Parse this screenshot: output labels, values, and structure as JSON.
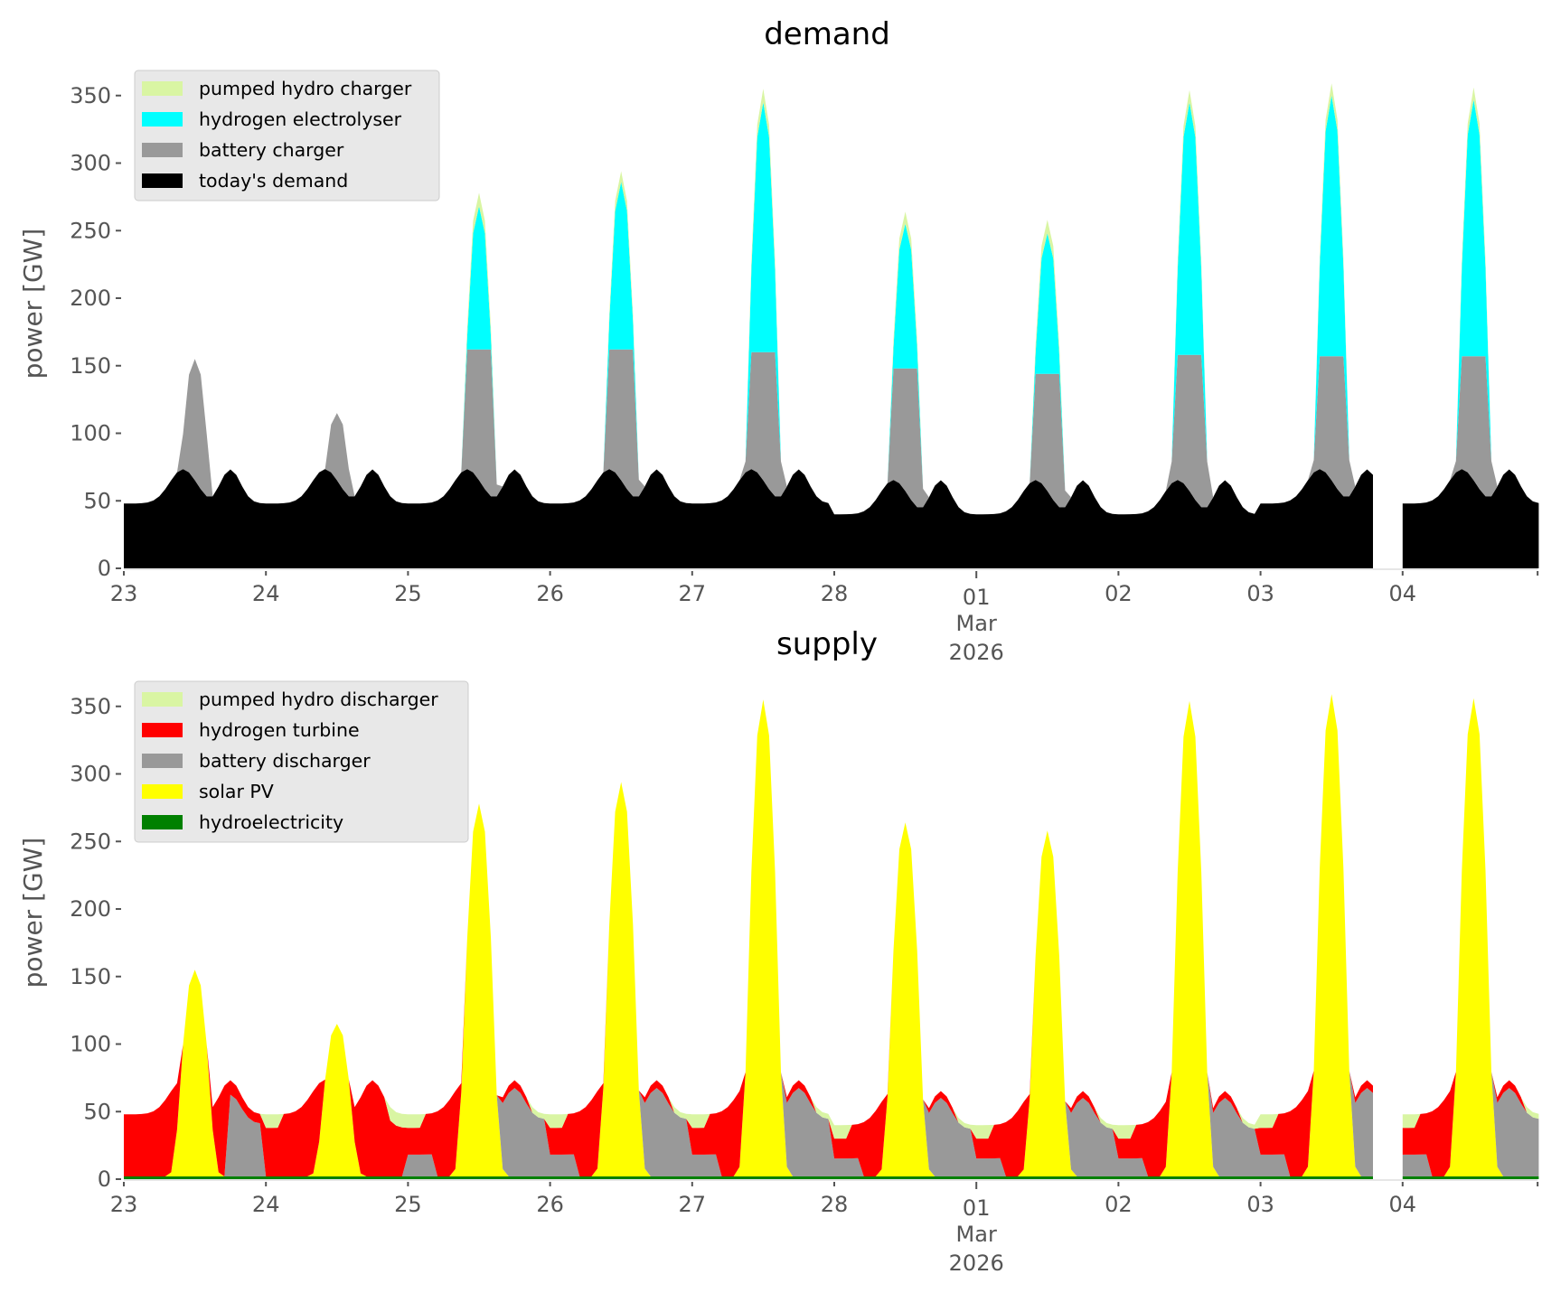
{
  "chart_data": [
    {
      "type": "area",
      "stacked": true,
      "title": "demand",
      "xlabel": "",
      "ylabel": "power [GW]",
      "ylim": [
        0,
        370
      ],
      "yticks": [
        0,
        50,
        100,
        150,
        200,
        250,
        300,
        350
      ],
      "xticks": [
        {
          "day": 0,
          "label": "23"
        },
        {
          "day": 1,
          "label": "24"
        },
        {
          "day": 2,
          "label": "25"
        },
        {
          "day": 3,
          "label": "26"
        },
        {
          "day": 4,
          "label": "27"
        },
        {
          "day": 5,
          "label": "28"
        },
        {
          "day": 6,
          "label": "01",
          "sublabel": "Mar",
          "sublabel2": "2026"
        },
        {
          "day": 7,
          "label": "02"
        },
        {
          "day": 8,
          "label": "03"
        },
        {
          "day": 9,
          "label": "04"
        }
      ],
      "xrange_days": [
        0,
        9.95
      ],
      "grid": false,
      "legend_position": "top-left",
      "data_gap_days": [
        8.82,
        8.96
      ],
      "series": [
        {
          "name": "pumped hydro charger",
          "color": "#d9f5a3"
        },
        {
          "name": "hydrogen electrolyser",
          "color": "#00ffff"
        },
        {
          "name": "battery charger",
          "color": "#999999"
        },
        {
          "name": "today's demand",
          "color": "#000000"
        }
      ],
      "daily_peaks": [
        {
          "day": "23",
          "total_peak": 155,
          "battery_peak": 155,
          "electrolyser_peak": 0
        },
        {
          "day": "24",
          "total_peak": 115,
          "battery_peak": 115,
          "electrolyser_peak": 0
        },
        {
          "day": "25",
          "total_peak": 278,
          "battery_peak": 162,
          "electrolyser_peak": 268
        },
        {
          "day": "26",
          "total_peak": 294,
          "battery_peak": 162,
          "electrolyser_peak": 286
        },
        {
          "day": "27",
          "total_peak": 355,
          "battery_peak": 160,
          "electrolyser_peak": 345
        },
        {
          "day": "28",
          "total_peak": 264,
          "battery_peak": 148,
          "electrolyser_peak": 255
        },
        {
          "day": "01",
          "total_peak": 258,
          "battery_peak": 144,
          "electrolyser_peak": 248
        },
        {
          "day": "02",
          "total_peak": 354,
          "battery_peak": 158,
          "electrolyser_peak": 345
        },
        {
          "day": "03",
          "total_peak": 359,
          "battery_peak": 157,
          "electrolyser_peak": 350
        },
        {
          "day": "04",
          "total_peak": 356,
          "battery_peak": 157,
          "electrolyser_peak": 347
        }
      ],
      "demand_profile": {
        "min_GW": 44,
        "max_GW": 74
      }
    },
    {
      "type": "area",
      "stacked": true,
      "title": "supply",
      "xlabel": "",
      "ylabel": "power [GW]",
      "ylim": [
        0,
        370
      ],
      "yticks": [
        0,
        50,
        100,
        150,
        200,
        250,
        300,
        350
      ],
      "xticks": [
        {
          "day": 0,
          "label": "23"
        },
        {
          "day": 1,
          "label": "24"
        },
        {
          "day": 2,
          "label": "25"
        },
        {
          "day": 3,
          "label": "26"
        },
        {
          "day": 4,
          "label": "27"
        },
        {
          "day": 5,
          "label": "28"
        },
        {
          "day": 6,
          "label": "01",
          "sublabel": "Mar",
          "sublabel2": "2026"
        },
        {
          "day": 7,
          "label": "02"
        },
        {
          "day": 8,
          "label": "03"
        },
        {
          "day": 9,
          "label": "04"
        }
      ],
      "xrange_days": [
        0,
        9.95
      ],
      "grid": false,
      "legend_position": "top-left",
      "data_gap_days": [
        8.82,
        8.96
      ],
      "series": [
        {
          "name": "pumped hydro discharger",
          "color": "#d9f5a3"
        },
        {
          "name": "hydrogen turbine",
          "color": "#ff0000"
        },
        {
          "name": "battery discharger",
          "color": "#999999"
        },
        {
          "name": "solar PV",
          "color": "#ffff00"
        },
        {
          "name": "hydroelectricity",
          "color": "#008000"
        }
      ],
      "daily_solar_peaks": [
        {
          "day": "23",
          "solar_peak": 155
        },
        {
          "day": "24",
          "solar_peak": 115
        },
        {
          "day": "25",
          "solar_peak": 278
        },
        {
          "day": "26",
          "solar_peak": 294
        },
        {
          "day": "27",
          "solar_peak": 355
        },
        {
          "day": "28",
          "solar_peak": 264
        },
        {
          "day": "01",
          "solar_peak": 258
        },
        {
          "day": "02",
          "solar_peak": 354
        },
        {
          "day": "03",
          "solar_peak": 359
        },
        {
          "day": "04",
          "solar_peak": 356
        }
      ],
      "hydroelectricity_GW": 2
    }
  ]
}
